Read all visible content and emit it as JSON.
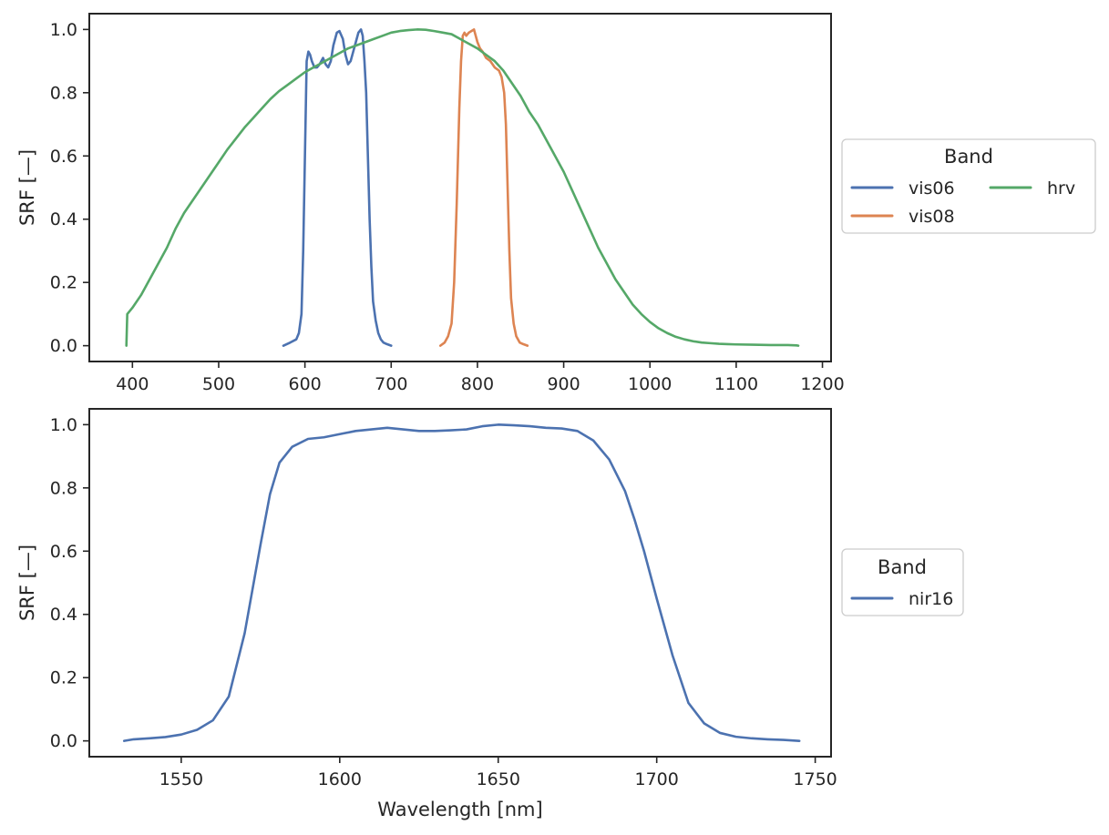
{
  "colors": {
    "vis06": "#4c72b0",
    "vis08": "#dd8452",
    "hrv": "#55a868",
    "nir16": "#4c72b0",
    "axes": "#262626"
  },
  "chart_data": [
    {
      "type": "line",
      "xlabel": "",
      "ylabel": "SRF [—]",
      "xlim": [
        350,
        1210
      ],
      "ylim": [
        -0.05,
        1.05
      ],
      "xticks": [
        400,
        500,
        600,
        700,
        800,
        900,
        1000,
        1100,
        1200
      ],
      "yticks": [
        0.0,
        0.2,
        0.4,
        0.6,
        0.8,
        1.0
      ],
      "grid": false,
      "legend": {
        "title": "Band",
        "placement": "right-outside",
        "columns": 2
      },
      "series": [
        {
          "name": "vis06",
          "x": [
            575,
            583,
            590,
            593,
            596,
            598,
            600,
            602,
            604,
            606,
            608,
            611,
            614,
            617,
            621,
            624,
            627,
            630,
            633,
            637,
            640,
            644,
            647,
            650,
            653,
            656,
            659,
            662,
            665,
            667,
            669,
            671,
            673,
            675,
            677,
            679,
            682,
            685,
            688,
            691,
            695,
            700
          ],
          "y": [
            0.0,
            0.01,
            0.02,
            0.04,
            0.1,
            0.3,
            0.6,
            0.9,
            0.93,
            0.92,
            0.9,
            0.88,
            0.88,
            0.89,
            0.91,
            0.89,
            0.88,
            0.9,
            0.95,
            0.99,
            0.995,
            0.97,
            0.92,
            0.89,
            0.9,
            0.93,
            0.96,
            0.99,
            1.0,
            0.98,
            0.9,
            0.8,
            0.6,
            0.4,
            0.25,
            0.14,
            0.08,
            0.04,
            0.02,
            0.01,
            0.005,
            0.0
          ]
        },
        {
          "name": "vis08",
          "x": [
            757,
            762,
            766,
            770,
            773,
            776,
            779,
            781,
            783,
            785,
            787,
            790,
            793,
            796,
            798,
            800,
            803,
            806,
            810,
            815,
            820,
            825,
            828,
            831,
            833,
            835,
            837,
            839,
            842,
            845,
            849,
            853,
            858
          ],
          "y": [
            0.0,
            0.01,
            0.03,
            0.07,
            0.2,
            0.45,
            0.75,
            0.9,
            0.98,
            0.99,
            0.98,
            0.99,
            0.995,
            1.0,
            0.98,
            0.96,
            0.94,
            0.93,
            0.91,
            0.9,
            0.88,
            0.87,
            0.85,
            0.8,
            0.7,
            0.5,
            0.3,
            0.15,
            0.07,
            0.03,
            0.01,
            0.005,
            0.0
          ]
        },
        {
          "name": "hrv",
          "x": [
            393,
            394,
            400,
            410,
            420,
            430,
            440,
            450,
            460,
            470,
            480,
            490,
            500,
            510,
            520,
            530,
            540,
            550,
            560,
            570,
            580,
            590,
            600,
            610,
            620,
            630,
            640,
            650,
            660,
            670,
            680,
            690,
            700,
            710,
            720,
            730,
            740,
            750,
            760,
            770,
            780,
            790,
            800,
            810,
            820,
            830,
            840,
            850,
            860,
            870,
            880,
            890,
            900,
            910,
            920,
            930,
            940,
            950,
            960,
            970,
            980,
            990,
            1000,
            1010,
            1020,
            1030,
            1040,
            1050,
            1060,
            1070,
            1080,
            1090,
            1100,
            1120,
            1140,
            1160,
            1170,
            1172
          ],
          "y": [
            0.0,
            0.1,
            0.12,
            0.16,
            0.21,
            0.26,
            0.31,
            0.37,
            0.42,
            0.46,
            0.5,
            0.54,
            0.58,
            0.62,
            0.655,
            0.69,
            0.72,
            0.75,
            0.78,
            0.805,
            0.825,
            0.845,
            0.865,
            0.88,
            0.895,
            0.91,
            0.925,
            0.94,
            0.95,
            0.96,
            0.97,
            0.98,
            0.99,
            0.995,
            0.998,
            1.0,
            0.999,
            0.995,
            0.99,
            0.985,
            0.97,
            0.955,
            0.94,
            0.92,
            0.9,
            0.87,
            0.83,
            0.79,
            0.74,
            0.7,
            0.65,
            0.6,
            0.55,
            0.49,
            0.43,
            0.37,
            0.31,
            0.26,
            0.21,
            0.17,
            0.13,
            0.1,
            0.075,
            0.055,
            0.04,
            0.028,
            0.02,
            0.014,
            0.01,
            0.008,
            0.006,
            0.005,
            0.004,
            0.003,
            0.002,
            0.002,
            0.001,
            0.0
          ]
        }
      ]
    },
    {
      "type": "line",
      "xlabel": "Wavelength [nm]",
      "ylabel": "SRF [—]",
      "xlim": [
        1521,
        1755
      ],
      "ylim": [
        -0.05,
        1.05
      ],
      "xticks": [
        1550,
        1600,
        1650,
        1700,
        1750
      ],
      "yticks": [
        0.0,
        0.2,
        0.4,
        0.6,
        0.8,
        1.0
      ],
      "grid": false,
      "legend": {
        "title": "Band",
        "placement": "right-outside",
        "columns": 1
      },
      "series": [
        {
          "name": "nir16",
          "x": [
            1532,
            1535,
            1540,
            1545,
            1550,
            1555,
            1560,
            1565,
            1570,
            1575,
            1578,
            1581,
            1585,
            1590,
            1595,
            1600,
            1605,
            1610,
            1615,
            1620,
            1625,
            1630,
            1635,
            1640,
            1645,
            1650,
            1655,
            1660,
            1665,
            1670,
            1675,
            1680,
            1685,
            1690,
            1693,
            1696,
            1700,
            1705,
            1710,
            1715,
            1720,
            1725,
            1730,
            1735,
            1740,
            1745
          ],
          "y": [
            0.0,
            0.005,
            0.008,
            0.012,
            0.02,
            0.035,
            0.065,
            0.14,
            0.34,
            0.62,
            0.78,
            0.88,
            0.93,
            0.955,
            0.96,
            0.97,
            0.98,
            0.985,
            0.99,
            0.985,
            0.98,
            0.98,
            0.982,
            0.985,
            0.995,
            1.0,
            0.998,
            0.995,
            0.99,
            0.988,
            0.98,
            0.95,
            0.89,
            0.79,
            0.7,
            0.6,
            0.45,
            0.27,
            0.12,
            0.055,
            0.025,
            0.013,
            0.008,
            0.005,
            0.003,
            0.0
          ]
        }
      ]
    }
  ]
}
